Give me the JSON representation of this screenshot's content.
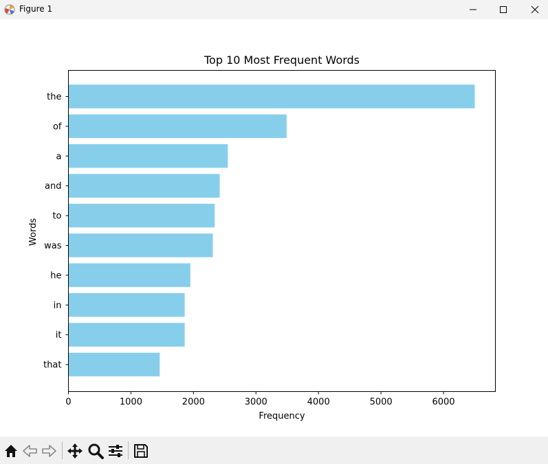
{
  "window": {
    "title": "Figure 1",
    "controls": [
      "minimize",
      "maximize",
      "close"
    ]
  },
  "toolbar": {
    "buttons": [
      "home-icon",
      "back-arrow-icon",
      "forward-arrow-icon",
      "pan-icon",
      "zoom-icon",
      "configure-subplots-icon",
      "save-icon"
    ]
  },
  "chart_data": {
    "type": "bar",
    "orientation": "horizontal",
    "title": "Top 10 Most Frequent Words",
    "xlabel": "Frequency",
    "ylabel": "Words",
    "categories": [
      "the",
      "of",
      "a",
      "and",
      "to",
      "was",
      "he",
      "in",
      "it",
      "that"
    ],
    "values": [
      6500,
      3490,
      2550,
      2420,
      2340,
      2310,
      1950,
      1860,
      1860,
      1460
    ],
    "xlim": [
      0,
      6830
    ],
    "xticks": [
      0,
      1000,
      2000,
      3000,
      4000,
      5000,
      6000
    ],
    "bar_color": "#87ceeb",
    "grid": false,
    "legend": "none"
  }
}
